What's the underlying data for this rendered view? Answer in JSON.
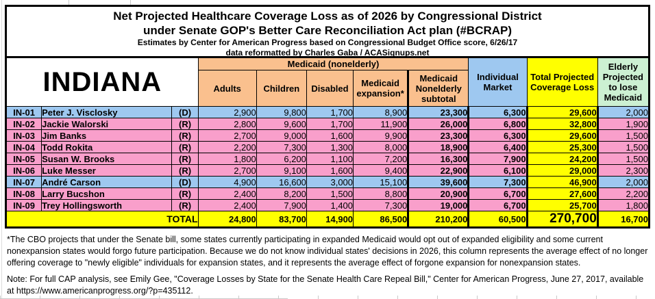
{
  "title": {
    "line1": "Net Projected Healthcare Coverage Loss as of 2026 by Congressional District",
    "line2": "under Senate GOP's Better Care Reconciliation Act plan (#BCRAP)",
    "line3": "Estimates by Center for American Progress based on Congressional Budget Office score, 6/26/17",
    "line4": "data reformatted by Charles Gaba / ACASignups.net"
  },
  "chart_data": {
    "type": "table",
    "state_label": "INDIANA",
    "medicaid_group_label": "Medicaid (nonelderly)",
    "medicaid_subcolumns": [
      "Adults",
      "Children",
      "Disabled",
      "Medicaid expansion*",
      "Medicaid Nonelderly subtotal"
    ],
    "other_columns": [
      "Individual Market",
      "Total Projected Coverage Loss",
      "Elderly Projected to lose Medicaid"
    ],
    "rows": [
      {
        "district": "IN-01",
        "representative": "Peter J. Visclosky",
        "party": "(D)",
        "values": [
          "2,900",
          "9,800",
          "1,700",
          "8,900",
          "23,300",
          "6,300",
          "29,600",
          "2,000"
        ]
      },
      {
        "district": "IN-02",
        "representative": "Jackie Walorski",
        "party": "(R)",
        "values": [
          "2,800",
          "9,600",
          "1,700",
          "11,900",
          "26,000",
          "6,800",
          "32,800",
          "1,900"
        ]
      },
      {
        "district": "IN-03",
        "representative": "Jim Banks",
        "party": "(R)",
        "values": [
          "2,700",
          "9,000",
          "1,600",
          "9,900",
          "23,300",
          "6,300",
          "29,600",
          "1,500"
        ]
      },
      {
        "district": "IN-04",
        "representative": "Todd Rokita",
        "party": "(R)",
        "values": [
          "2,200",
          "7,300",
          "1,300",
          "8,000",
          "18,900",
          "6,400",
          "25,300",
          "1,500"
        ]
      },
      {
        "district": "IN-05",
        "representative": "Susan W. Brooks",
        "party": "(R)",
        "values": [
          "1,800",
          "6,200",
          "1,100",
          "7,200",
          "16,300",
          "7,900",
          "24,200",
          "1,500"
        ]
      },
      {
        "district": "IN-06",
        "representative": "Luke Messer",
        "party": "(R)",
        "values": [
          "2,700",
          "9,100",
          "1,600",
          "9,400",
          "22,900",
          "6,100",
          "29,000",
          "2,300"
        ]
      },
      {
        "district": "IN-07",
        "representative": "André Carson",
        "party": "(D)",
        "values": [
          "4,900",
          "16,600",
          "3,000",
          "15,100",
          "39,600",
          "7,300",
          "46,900",
          "2,000"
        ]
      },
      {
        "district": "IN-08",
        "representative": "Larry Bucshon",
        "party": "(R)",
        "values": [
          "2,400",
          "8,200",
          "1,500",
          "8,800",
          "20,900",
          "6,700",
          "27,600",
          "2,200"
        ]
      },
      {
        "district": "IN-09",
        "representative": "Trey Hollingsworth",
        "party": "(R)",
        "values": [
          "2,400",
          "7,900",
          "1,400",
          "7,300",
          "19,000",
          "6,700",
          "25,700",
          "1,800"
        ]
      }
    ],
    "total_row": {
      "label": "TOTAL",
      "values": [
        "24,800",
        "83,700",
        "14,900",
        "86,500",
        "210,200",
        "60,500",
        "270,700",
        "16,700"
      ]
    }
  },
  "footnote": "*The CBO projects that under the Senate bill, some states currently participating in expanded Medicaid would opt out of expanded eligibility and some current nonexpansion states would forgo future participation. Because we do not know individual states' decisions in 2026, this column represents the average effect of no longer offering coverage to \"newly eligible\" individuals for expansion states, and it represents the average effect of forgone expansion for nonexpansion states.",
  "note": "Note: For full CAP analysis, see Emily Gee, \"Coverage Losses by State for the Senate Health Care Repeal Bill,\" Center for American Progress, June 27, 2017, available at https://www.americanprogress.org/?p=435112.",
  "colors": {
    "medicaid_header_bg": "#FAC08E",
    "democrat_row_bg": "#9EC8F0",
    "republican_row_bg": "#F99FCB",
    "total_column_bg": "#FFFF00",
    "elderly_header_bg": "#CCF0D2",
    "individual_market_header_bg": "#9EC8F0"
  }
}
